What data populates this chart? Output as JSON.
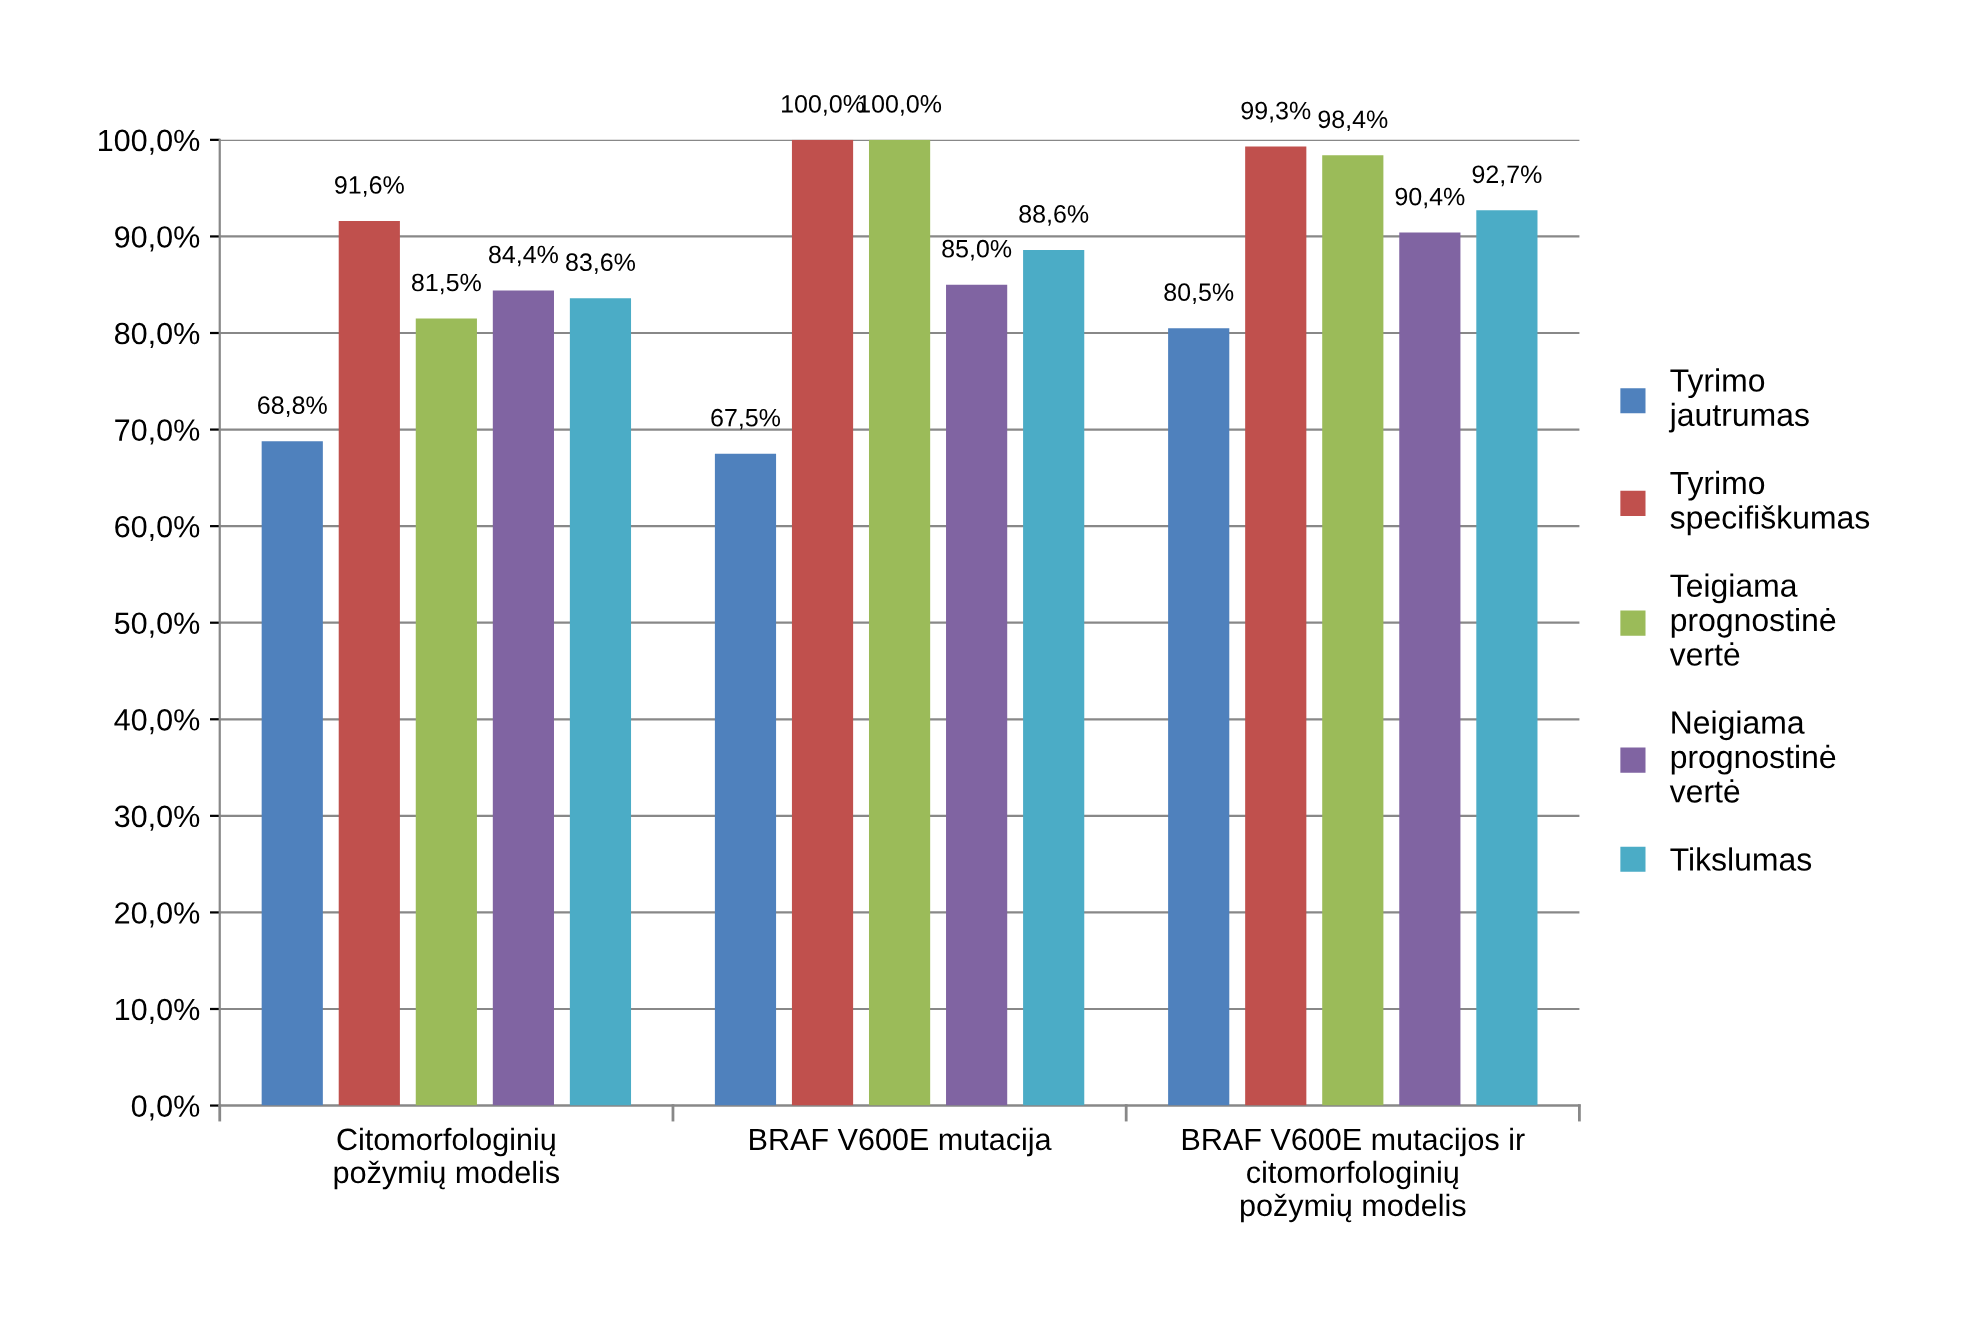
{
  "chart_data": {
    "type": "bar",
    "categories": [
      "Citomorfologinių\npožymių modelis",
      "BRAF V600E mutacija",
      "BRAF V600E mutacijos ir\ncitomorfologinių\npožymių modelis"
    ],
    "series": [
      {
        "name": "Tyrimo\njautrumas",
        "color": "#4f81bd",
        "values": [
          68.8,
          67.5,
          80.5
        ],
        "value_labels": [
          "68,8%",
          "67,5%",
          "80,5%"
        ]
      },
      {
        "name": "Tyrimo\nspecifiškumas",
        "color": "#c0504d",
        "values": [
          91.6,
          100.0,
          99.3
        ],
        "value_labels": [
          "91,6%",
          "100,0%",
          "99,3%"
        ]
      },
      {
        "name": "Teigiama\nprognostinė\nvertė",
        "color": "#9bbb59",
        "values": [
          81.5,
          100.0,
          98.4
        ],
        "value_labels": [
          "81,5%",
          "100,0%",
          "98,4%"
        ]
      },
      {
        "name": "Neigiama\nprognostinė\nvertė",
        "color": "#8064a2",
        "values": [
          84.4,
          85.0,
          90.4
        ],
        "value_labels": [
          "84,4%",
          "85,0%",
          "90,4%"
        ]
      },
      {
        "name": "Tikslumas",
        "color": "#4bacc6",
        "values": [
          83.6,
          88.6,
          92.7
        ],
        "value_labels": [
          "83,6%",
          "88,6%",
          "92,7%"
        ]
      }
    ],
    "ylim": [
      0,
      100
    ],
    "yticks": [
      {
        "value": 0,
        "label": "0,0%"
      },
      {
        "value": 10,
        "label": "10,0%"
      },
      {
        "value": 20,
        "label": "20,0%"
      },
      {
        "value": 30,
        "label": "30,0%"
      },
      {
        "value": 40,
        "label": "40,0%"
      },
      {
        "value": 50,
        "label": "50,0%"
      },
      {
        "value": 60,
        "label": "60,0%"
      },
      {
        "value": 70,
        "label": "70,0%"
      },
      {
        "value": 80,
        "label": "80,0%"
      },
      {
        "value": 90,
        "label": "90,0%"
      },
      {
        "value": 100,
        "label": "100,0%"
      }
    ],
    "grid": "y",
    "legend": "right"
  }
}
